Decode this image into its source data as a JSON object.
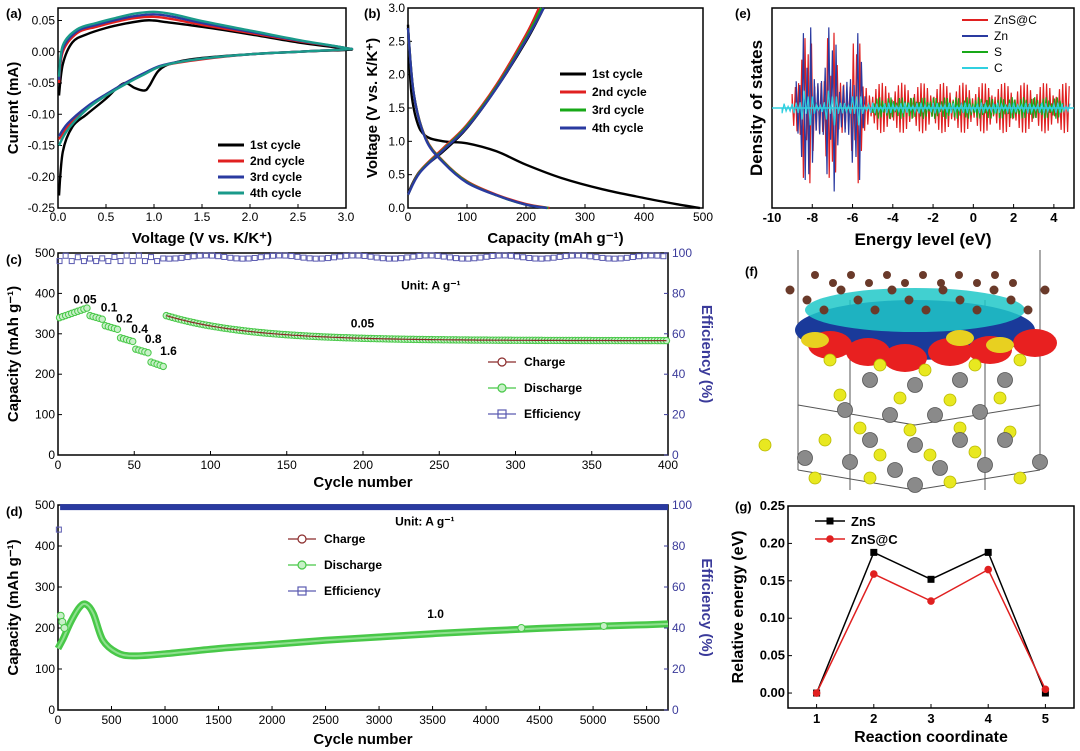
{
  "figure": {
    "crystal_panel_label": "(f)"
  },
  "colors": {
    "black": "#000000",
    "red": "#e02020",
    "blue": "#2a3aa0",
    "green": "#18a818",
    "teal": "#1a9a8a",
    "cyan": "#30d0e0",
    "charge_dark": "#8a2a2a",
    "discharge_green": "#48c848",
    "efficiency_blue": "#5a5ab0"
  },
  "chart_data": [
    {
      "id": "a",
      "type": "line",
      "panel_label": "(a)",
      "xlabel": "Voltage (V vs. K/K⁺)",
      "ylabel": "Current (mA)",
      "xlim": [
        0,
        3.0
      ],
      "ylim": [
        -0.25,
        0.07
      ],
      "xticks": [
        "0.0",
        "0.5",
        "1.0",
        "1.5",
        "2.0",
        "2.5",
        "3.0"
      ],
      "yticks": [
        "0.05",
        "0.00",
        "-0.05",
        "-0.10",
        "-0.15",
        "-0.20",
        "-0.25"
      ],
      "legend_position": "bottom-right",
      "series": [
        {
          "name": "1st  cycle",
          "color": "#000000",
          "x": [
            0.01,
            0.05,
            0.15,
            0.3,
            0.5,
            0.6,
            0.7,
            0.8,
            0.9,
            0.95,
            1.05,
            1.2,
            1.5,
            2.0,
            2.5,
            3.0,
            3.0,
            2.5,
            2.0,
            1.5,
            1.1,
            1.0,
            0.9,
            0.7,
            0.5,
            0.3,
            0.15,
            0.05,
            0.01
          ],
          "y": [
            -0.23,
            -0.16,
            -0.12,
            -0.1,
            -0.075,
            -0.06,
            -0.05,
            -0.058,
            -0.062,
            -0.055,
            -0.03,
            -0.018,
            -0.01,
            -0.004,
            0.0,
            0.003,
            0.005,
            0.015,
            0.028,
            0.04,
            0.048,
            0.05,
            0.05,
            0.045,
            0.038,
            0.028,
            0.015,
            -0.02,
            -0.07
          ]
        },
        {
          "name": "2nd cycle",
          "color": "#e02020",
          "x": [
            0.01,
            0.1,
            0.3,
            0.5,
            0.7,
            0.9,
            1.1,
            1.5,
            2.0,
            2.5,
            3.0,
            3.0,
            2.5,
            2.0,
            1.5,
            1.2,
            1.0,
            0.8,
            0.6,
            0.4,
            0.2,
            0.05,
            0.01
          ],
          "y": [
            -0.14,
            -0.12,
            -0.09,
            -0.07,
            -0.05,
            -0.035,
            -0.022,
            -0.012,
            -0.004,
            0.0,
            0.004,
            0.006,
            0.017,
            0.03,
            0.043,
            0.052,
            0.056,
            0.054,
            0.048,
            0.04,
            0.03,
            0.0,
            -0.05
          ]
        },
        {
          "name": "3rd cycle",
          "color": "#2a3aa0",
          "x": [
            0.01,
            0.1,
            0.3,
            0.5,
            0.7,
            0.9,
            1.1,
            1.5,
            2.0,
            2.5,
            3.0,
            3.0,
            2.5,
            2.0,
            1.5,
            1.2,
            1.0,
            0.8,
            0.6,
            0.4,
            0.2,
            0.05,
            0.01
          ],
          "y": [
            -0.135,
            -0.115,
            -0.088,
            -0.068,
            -0.05,
            -0.034,
            -0.021,
            -0.011,
            -0.004,
            0.0,
            0.004,
            0.006,
            0.018,
            0.032,
            0.046,
            0.056,
            0.06,
            0.057,
            0.051,
            0.043,
            0.033,
            0.005,
            -0.045
          ]
        },
        {
          "name": "4th cycle",
          "color": "#1a9a8a",
          "x": [
            0.01,
            0.1,
            0.3,
            0.5,
            0.7,
            0.9,
            1.1,
            1.5,
            2.0,
            2.5,
            3.0,
            3.0,
            2.5,
            2.0,
            1.5,
            1.2,
            1.0,
            0.8,
            0.6,
            0.4,
            0.2,
            0.05,
            0.01
          ],
          "y": [
            -0.15,
            -0.125,
            -0.092,
            -0.07,
            -0.052,
            -0.036,
            -0.022,
            -0.011,
            -0.004,
            0.0,
            0.004,
            0.006,
            0.019,
            0.034,
            0.049,
            0.06,
            0.064,
            0.061,
            0.054,
            0.046,
            0.036,
            0.01,
            -0.04
          ]
        }
      ]
    },
    {
      "id": "b",
      "type": "line",
      "panel_label": "(b)",
      "xlabel": "Capacity (mAh g⁻¹)",
      "ylabel": "Voltage (V vs. K/K⁺)",
      "xlim": [
        0,
        500
      ],
      "ylim": [
        0,
        3.0
      ],
      "xticks": [
        "0",
        "100",
        "200",
        "300",
        "400",
        "500"
      ],
      "yticks": [
        "0.0",
        "0.5",
        "1.0",
        "1.5",
        "2.0",
        "2.5",
        "3.0"
      ],
      "legend_position": "right",
      "series": [
        {
          "name": "1st  cycle",
          "color": "#000000",
          "x": [
            0,
            5,
            15,
            30,
            60,
            100,
            150,
            200,
            260,
            330,
            400,
            460,
            495
          ],
          "y": [
            2.75,
            1.8,
            1.3,
            1.08,
            1.0,
            0.97,
            0.85,
            0.65,
            0.45,
            0.28,
            0.15,
            0.05,
            0.0
          ]
        },
        {
          "name": "1st  cycle",
          "color": "#000000",
          "x": [
            0,
            20,
            60,
            100,
            150,
            200,
            230
          ],
          "y": [
            0.22,
            0.55,
            0.85,
            1.2,
            1.8,
            2.5,
            3.0
          ]
        },
        {
          "name": "2nd cycle",
          "color": "#e02020",
          "x": [
            0,
            10,
            30,
            60,
            100,
            150,
            200,
            240
          ],
          "y": [
            2.7,
            1.7,
            1.05,
            0.7,
            0.4,
            0.2,
            0.06,
            0.0
          ]
        },
        {
          "name": "2nd cycle",
          "color": "#e02020",
          "x": [
            0,
            20,
            60,
            100,
            150,
            200,
            222
          ],
          "y": [
            0.2,
            0.55,
            0.9,
            1.25,
            1.85,
            2.6,
            3.0
          ]
        },
        {
          "name": "3rd cycle",
          "color": "#18a818",
          "x": [
            0,
            10,
            30,
            60,
            100,
            150,
            200,
            238
          ],
          "y": [
            2.7,
            1.7,
            1.04,
            0.69,
            0.39,
            0.19,
            0.05,
            0.0
          ]
        },
        {
          "name": "3rd cycle",
          "color": "#18a818",
          "x": [
            0,
            20,
            60,
            100,
            150,
            200,
            226
          ],
          "y": [
            0.2,
            0.54,
            0.88,
            1.23,
            1.82,
            2.55,
            3.0
          ]
        },
        {
          "name": "4th cycle",
          "color": "#2a3aa0",
          "x": [
            0,
            10,
            30,
            60,
            100,
            150,
            200,
            236
          ],
          "y": [
            2.7,
            1.7,
            1.03,
            0.68,
            0.38,
            0.19,
            0.05,
            0.0
          ]
        },
        {
          "name": "4th cycle",
          "color": "#2a3aa0",
          "x": [
            0,
            20,
            60,
            100,
            150,
            200,
            230
          ],
          "y": [
            0.2,
            0.53,
            0.87,
            1.21,
            1.8,
            2.52,
            3.0
          ]
        }
      ]
    },
    {
      "id": "c",
      "type": "scatter",
      "panel_label": "(c)",
      "xlabel": "Cycle number",
      "ylabel": "Capacity (mAh g⁻¹)",
      "y2label": "Efficiency (%)",
      "xlim": [
        0,
        400
      ],
      "ylim": [
        0,
        500
      ],
      "y2lim": [
        0,
        100
      ],
      "xticks": [
        "0",
        "50",
        "100",
        "150",
        "200",
        "250",
        "300",
        "350",
        "400"
      ],
      "yticks": [
        "0",
        "100",
        "200",
        "300",
        "400",
        "500"
      ],
      "y2ticks": [
        "0",
        "20",
        "40",
        "60",
        "80",
        "100"
      ],
      "legend_position": "center-right",
      "legend": [
        "Charge",
        "Discharge",
        "Efficiency"
      ],
      "annotations": [
        {
          "text": "0.05",
          "x": 10,
          "y": 375
        },
        {
          "text": "0.1",
          "x": 28,
          "y": 355
        },
        {
          "text": "0.2",
          "x": 38,
          "y": 328
        },
        {
          "text": "0.4",
          "x": 48,
          "y": 302
        },
        {
          "text": "0.8",
          "x": 57,
          "y": 277
        },
        {
          "text": "1.6",
          "x": 67,
          "y": 247
        },
        {
          "text": "0.05",
          "x": 192,
          "y": 315
        },
        {
          "text": "Unit: A g⁻¹",
          "x": 225,
          "y": 410
        }
      ],
      "rate_segments": [
        {
          "cycles": [
            1,
            20
          ],
          "capacity": [
            340,
            365
          ]
        },
        {
          "cycles": [
            21,
            30
          ],
          "capacity": [
            345,
            335
          ]
        },
        {
          "cycles": [
            31,
            40
          ],
          "capacity": [
            320,
            310
          ]
        },
        {
          "cycles": [
            41,
            50
          ],
          "capacity": [
            290,
            280
          ]
        },
        {
          "cycles": [
            51,
            60
          ],
          "capacity": [
            262,
            252
          ]
        },
        {
          "cycles": [
            61,
            70
          ],
          "capacity": [
            230,
            218
          ]
        }
      ],
      "long_segment": {
        "cycles": [
          71,
          400
        ],
        "capacity_start": 345,
        "capacity_end": 283
      },
      "efficiency_mean": 98
    },
    {
      "id": "d",
      "type": "scatter",
      "panel_label": "(d)",
      "xlabel": "Cycle number",
      "ylabel": "Capacity (mAh g⁻¹)",
      "y2label": "Efficiency (%)",
      "xlim": [
        0,
        5700
      ],
      "ylim": [
        0,
        500
      ],
      "y2lim": [
        0,
        100
      ],
      "xticks": [
        "0",
        "500",
        "1000",
        "1500",
        "2000",
        "2500",
        "3000",
        "3500",
        "4000",
        "4500",
        "5000",
        "5500"
      ],
      "yticks": [
        "0",
        "100",
        "200",
        "300",
        "400",
        "500"
      ],
      "y2ticks": [
        "0",
        "20",
        "40",
        "60",
        "80",
        "100"
      ],
      "legend_position": "top-center",
      "legend": [
        "Charge",
        "Discharge",
        "Efficiency"
      ],
      "annotations": [
        {
          "text": "1.0",
          "x": 3450,
          "y": 225
        },
        {
          "text": "Unit: A g⁻¹",
          "x": 3150,
          "y": 450
        }
      ],
      "capacity_profile": {
        "x": [
          0,
          50,
          120,
          200,
          260,
          330,
          420,
          550,
          700,
          1000,
          1500,
          2000,
          2500,
          3000,
          3500,
          4000,
          4500,
          5000,
          5500,
          5700
        ],
        "y": [
          150,
          175,
          215,
          250,
          258,
          235,
          170,
          140,
          132,
          137,
          150,
          160,
          170,
          178,
          186,
          193,
          199,
          204,
          208,
          210
        ]
      },
      "efficiency_mean": 99
    },
    {
      "id": "e",
      "type": "line",
      "panel_label": "(e)",
      "xlabel": "Energy level (eV)",
      "ylabel": "Density of states",
      "xlim": [
        -10,
        5
      ],
      "xticks": [
        "-10",
        "-8",
        "-6",
        "-4",
        "-2",
        "0",
        "2",
        "4"
      ],
      "legend_position": "top-right",
      "legend": [
        {
          "name": "ZnS@C",
          "color": "#e02020"
        },
        {
          "name": "Zn",
          "color": "#2a3aa0"
        },
        {
          "name": "S",
          "color": "#18a818"
        },
        {
          "name": "C",
          "color": "#30d0e0"
        }
      ]
    },
    {
      "id": "g",
      "type": "line",
      "panel_label": "(g)",
      "xlabel": "Reaction coordinate",
      "ylabel": "Relative energy (eV)",
      "xlim": [
        0.5,
        5.5
      ],
      "ylim": [
        -0.02,
        0.25
      ],
      "xticks": [
        "1",
        "2",
        "3",
        "4",
        "5"
      ],
      "yticks": [
        "0.00",
        "0.05",
        "0.10",
        "0.15",
        "0.20",
        "0.25"
      ],
      "legend_position": "top-left",
      "categories": [
        1,
        2,
        3,
        4,
        5
      ],
      "series": [
        {
          "name": "ZnS",
          "color": "#000000",
          "marker": "square",
          "values": [
            0.0,
            0.188,
            0.152,
            0.188,
            0.0
          ]
        },
        {
          "name": "ZnS@C",
          "color": "#e02020",
          "marker": "circle",
          "values": [
            0.0,
            0.159,
            0.123,
            0.165,
            0.005
          ]
        }
      ]
    }
  ]
}
